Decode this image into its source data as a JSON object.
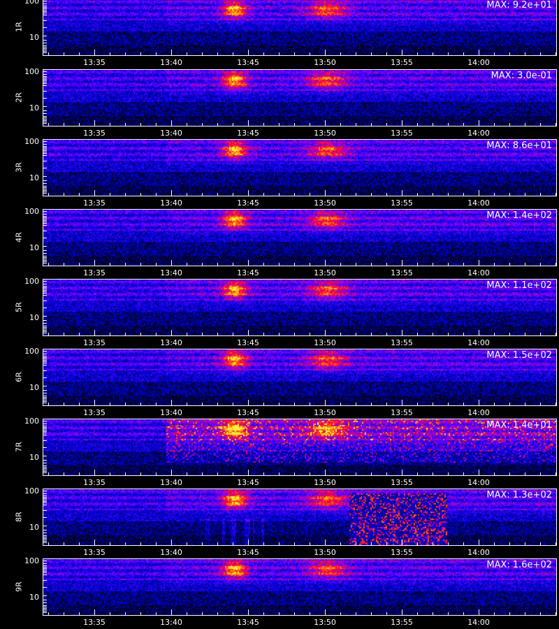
{
  "chart_data": {
    "type": "heatmap",
    "colormap": "black-blue-red-yellow",
    "x_tick_labels": [
      "13:35",
      "13:40",
      "13:45",
      "13:50",
      "13:55",
      "14:00"
    ],
    "y_axis_scale": "log",
    "y_tick_labels": [
      "10",
      "100"
    ],
    "xlabel": "",
    "panels": [
      {
        "label": "1R",
        "max_label": "MAX: 9.2e+01"
      },
      {
        "label": "2R",
        "max_label": "MAX: 3.0e-01"
      },
      {
        "label": "3R",
        "max_label": "MAX: 8.6e+01"
      },
      {
        "label": "4R",
        "max_label": "MAX: 1.4e+02"
      },
      {
        "label": "5R",
        "max_label": "MAX: 1.1e+02"
      },
      {
        "label": "6R",
        "max_label": "MAX: 1.5e+02"
      },
      {
        "label": "7R",
        "max_label": "MAX: 1.4e+01"
      },
      {
        "label": "8R",
        "max_label": "MAX: 1.3e+02"
      },
      {
        "label": "9R",
        "max_label": "MAX: 1.6e+02"
      }
    ]
  }
}
